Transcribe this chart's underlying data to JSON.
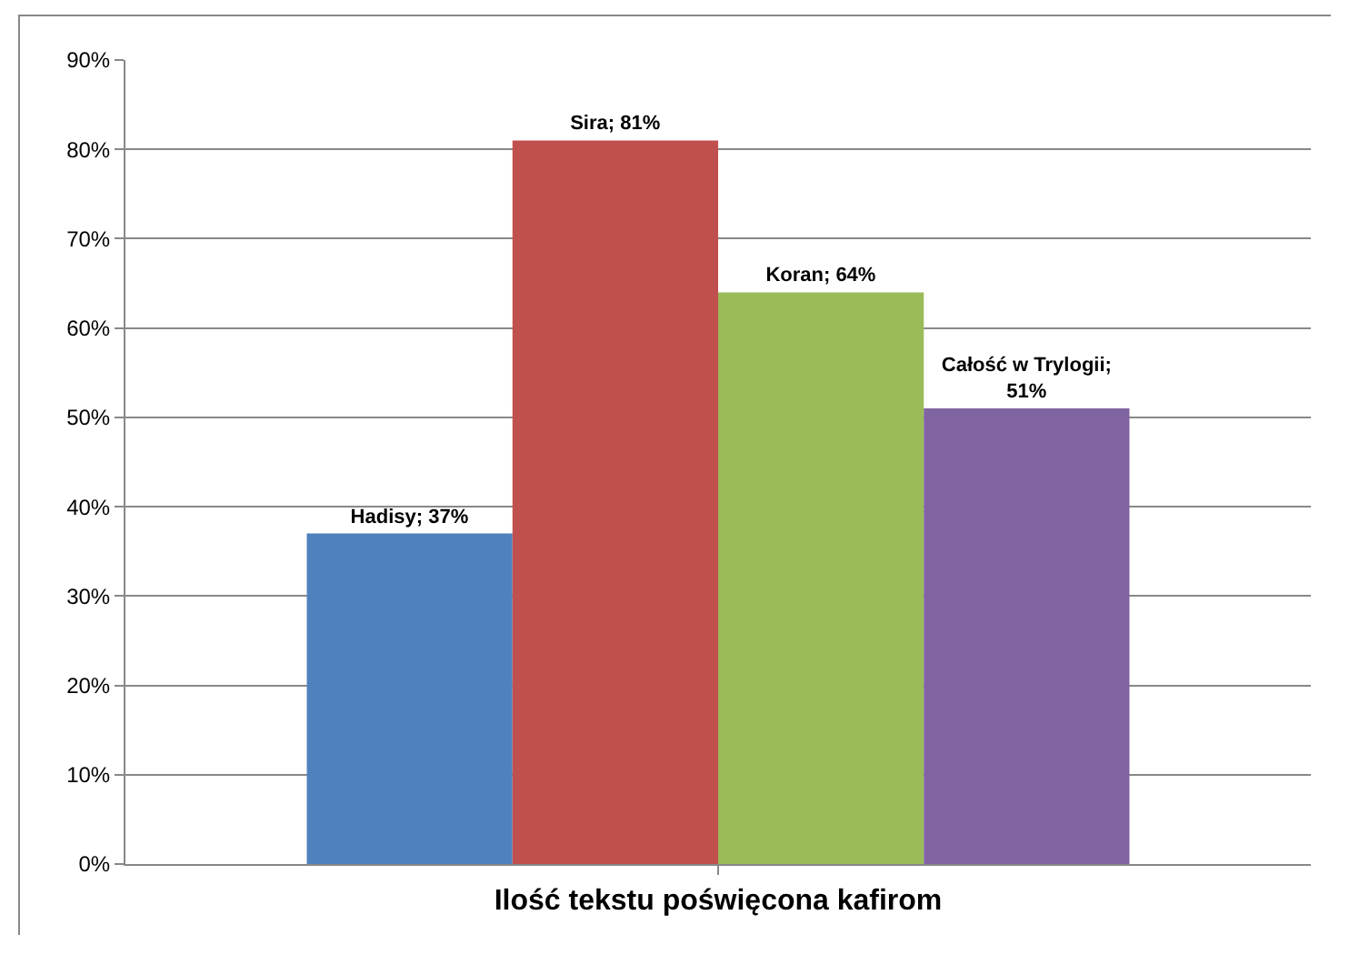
{
  "chart_data": {
    "type": "bar",
    "categories": [
      "Ilość tekstu poświęcona kafirom"
    ],
    "series": [
      {
        "name": "Hadisy",
        "color": "#4f81bd",
        "values": [
          37
        ],
        "value_labels": [
          "; 37%"
        ]
      },
      {
        "name": "Sira",
        "color": "#c0504d",
        "values": [
          81
        ],
        "value_labels": [
          "; 81%"
        ]
      },
      {
        "name": "Koran",
        "color": "#9bbb59",
        "values": [
          64
        ],
        "value_labels": [
          "; 64%"
        ]
      },
      {
        "name": "Całość w Trylogii",
        "color": "#8064a2",
        "values": [
          51
        ],
        "value_labels": [
          "; 51%"
        ]
      }
    ],
    "ylim": [
      0,
      90
    ],
    "yticks": [
      {
        "value": 0,
        "label": "0%"
      },
      {
        "value": 10,
        "label": "10%"
      },
      {
        "value": 20,
        "label": "20%"
      },
      {
        "value": 30,
        "label": "30%"
      },
      {
        "value": 40,
        "label": "40%"
      },
      {
        "value": 50,
        "label": "50%"
      },
      {
        "value": 60,
        "label": "60%"
      },
      {
        "value": 70,
        "label": "70%"
      },
      {
        "value": 80,
        "label": "80%"
      },
      {
        "value": 90,
        "label": "90%"
      }
    ],
    "grid": "y",
    "legend": false
  }
}
